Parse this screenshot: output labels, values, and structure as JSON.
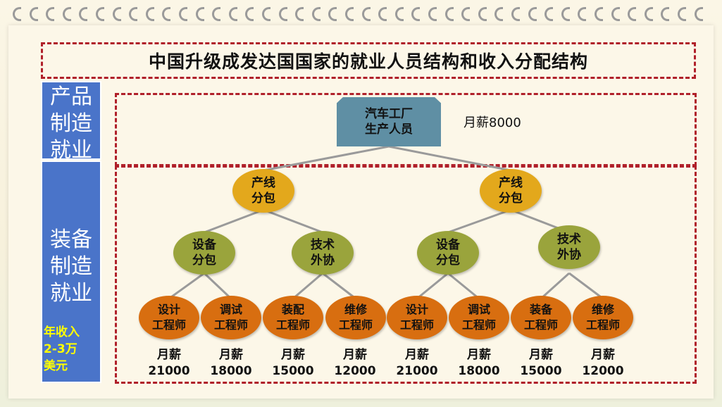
{
  "title": "中国升级成发达国国家的就业人员结构和收入分配结构",
  "side": {
    "top": [
      "产品",
      "制造",
      "就业"
    ],
    "bottom": [
      "装备",
      "制造",
      "就业"
    ],
    "income": [
      "年收入",
      "2-3万",
      "美元"
    ]
  },
  "root": {
    "lines": [
      "汽车工厂",
      "生产人员"
    ],
    "salary": "月薪8000"
  },
  "level1": [
    {
      "lines": [
        "产线",
        "分包"
      ]
    },
    {
      "lines": [
        "产线",
        "分包"
      ]
    }
  ],
  "level2": [
    {
      "lines": [
        "设备",
        "分包"
      ]
    },
    {
      "lines": [
        "技术",
        "外协"
      ]
    },
    {
      "lines": [
        "设备",
        "分包"
      ]
    },
    {
      "lines": [
        "技术",
        "外协"
      ]
    }
  ],
  "level3": [
    {
      "lines": [
        "设计",
        "工程师"
      ],
      "salary_label": "月薪",
      "salary": "21000"
    },
    {
      "lines": [
        "调试",
        "工程师"
      ],
      "salary_label": "月薪",
      "salary": "18000"
    },
    {
      "lines": [
        "装配",
        "工程师"
      ],
      "salary_label": "月薪",
      "salary": "15000"
    },
    {
      "lines": [
        "维修",
        "工程师"
      ],
      "salary_label": "月薪",
      "salary": "12000"
    },
    {
      "lines": [
        "设计",
        "工程师"
      ],
      "salary_label": "月薪",
      "salary": "21000"
    },
    {
      "lines": [
        "调试",
        "工程师"
      ],
      "salary_label": "月薪",
      "salary": "18000"
    },
    {
      "lines": [
        "装备",
        "工程师"
      ],
      "salary_label": "月薪",
      "salary": "15000"
    },
    {
      "lines": [
        "维修",
        "工程师"
      ],
      "salary_label": "月薪",
      "salary": "12000"
    }
  ],
  "colors": {
    "accent_dash": "#b0202a",
    "side_blue": "#4a74c9",
    "root": "#5f8fa4",
    "level1": "#e3a81c",
    "level2": "#9aa43c",
    "level3": "#d86e10",
    "income_text": "#ffff00"
  }
}
